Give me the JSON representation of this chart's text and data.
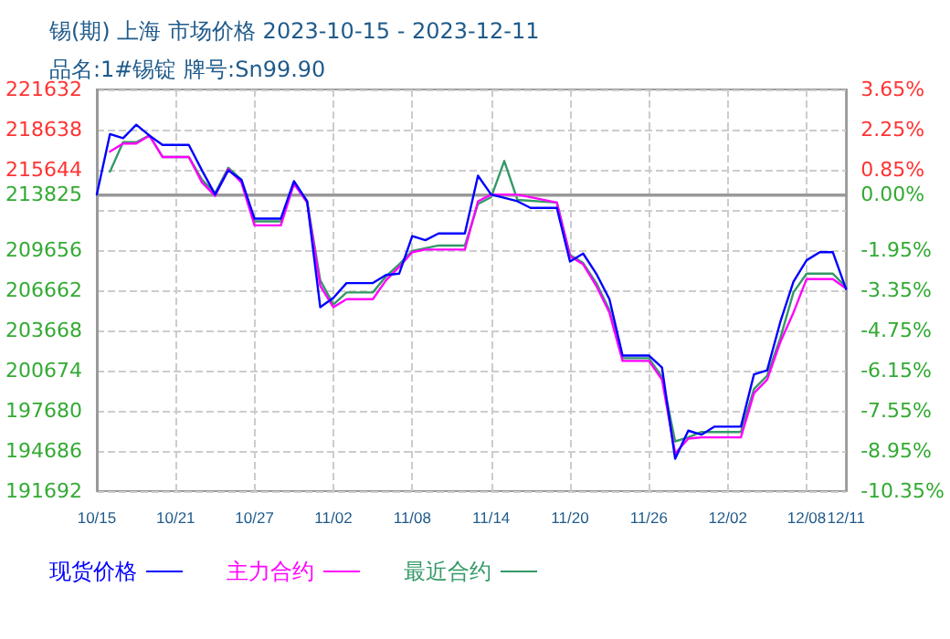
{
  "chart_data": {
    "type": "line",
    "title": "锡(期) 上海 市场价格 2023-10-15 - 2023-12-11",
    "subtitle": "品名:1#锡锭 牌号:Sn99.90",
    "xlim": [
      "2023-10-15",
      "2023-12-11"
    ],
    "xticks": [
      {
        "value": "2023-10-15",
        "label": "10/15"
      },
      {
        "value": "2023-10-21",
        "label": "10/21"
      },
      {
        "value": "2023-10-27",
        "label": "10/27"
      },
      {
        "value": "2023-11-02",
        "label": "11/02"
      },
      {
        "value": "2023-11-08",
        "label": "11/08"
      },
      {
        "value": "2023-11-14",
        "label": "11/14"
      },
      {
        "value": "2023-11-20",
        "label": "11/20"
      },
      {
        "value": "2023-11-26",
        "label": "11/26"
      },
      {
        "value": "2023-12-02",
        "label": "12/02"
      },
      {
        "value": "2023-12-08",
        "label": "12/08"
      },
      {
        "value": "2023-12-11",
        "label": "12/11"
      }
    ],
    "ylim": [
      191692,
      221632
    ],
    "yticks": [
      191692,
      194686,
      197680,
      200674,
      203668,
      206662,
      209656,
      {
        "value": 212650,
        "label": null
      },
      213825,
      215644,
      218638,
      221632
    ],
    "y2lim": [
      -10.35,
      3.65
    ],
    "y2ticks": [
      {
        "value": -10.35,
        "label": "-10.35%"
      },
      {
        "value": -8.95,
        "label": "-8.95%"
      },
      {
        "value": -7.55,
        "label": "-7.55%"
      },
      {
        "value": -6.15,
        "label": "-6.15%"
      },
      {
        "value": -4.75,
        "label": "-4.75%"
      },
      {
        "value": -3.35,
        "label": "-3.35%"
      },
      {
        "value": -1.95,
        "label": "-1.95%"
      },
      {
        "value": -0.55,
        "label": null
      },
      {
        "value": 0,
        "label": "0.00%"
      },
      {
        "value": 0.85,
        "label": "0.85%"
      },
      {
        "value": 2.25,
        "label": "2.25%"
      },
      {
        "value": 3.65,
        "label": "3.65%"
      }
    ],
    "ref_lines": [
      {
        "axis": "y",
        "value": 213825,
        "color": "#999999",
        "line_style": "solid"
      }
    ],
    "grid": true,
    "legend": "bottom left",
    "marker": "none",
    "line_style": "solid",
    "series": [
      {
        "name": "现货价格",
        "color": "#0000ff",
        "x": [
          "2023-10-15",
          "2023-10-16",
          "2023-10-17",
          "2023-10-18",
          "2023-10-19",
          "2023-10-20",
          "2023-10-22",
          "2023-10-23",
          "2023-10-24",
          "2023-10-25",
          "2023-10-26",
          "2023-10-27",
          "2023-10-29",
          "2023-10-30",
          "2023-10-31",
          "2023-11-01",
          "2023-11-02",
          "2023-11-03",
          "2023-11-05",
          "2023-11-06",
          "2023-11-07",
          "2023-11-08",
          "2023-11-09",
          "2023-11-10",
          "2023-11-12",
          "2023-11-13",
          "2023-11-14",
          "2023-11-16",
          "2023-11-17",
          "2023-11-19",
          "2023-11-20",
          "2023-11-21",
          "2023-11-22",
          "2023-11-23",
          "2023-11-24",
          "2023-11-26",
          "2023-11-27",
          "2023-11-28",
          "2023-11-29",
          "2023-11-30",
          "2023-12-01",
          "2023-12-03",
          "2023-12-04",
          "2023-12-05",
          "2023-12-06",
          "2023-12-07",
          "2023-12-08",
          "2023-12-09",
          "2023-12-10",
          "2023-12-11"
        ],
        "values": [
          213800,
          218300,
          218000,
          219000,
          218200,
          217500,
          217500,
          215600,
          213800,
          215600,
          214900,
          212000,
          212000,
          214800,
          213300,
          205400,
          206100,
          207200,
          207200,
          207800,
          207900,
          210700,
          210400,
          210900,
          210900,
          215200,
          213800,
          213300,
          212800,
          212800,
          208800,
          209400,
          207900,
          206000,
          201800,
          201800,
          200900,
          194100,
          196200,
          195900,
          196500,
          196500,
          200400,
          200700,
          204300,
          207300,
          208900,
          209500,
          209500,
          206750
        ]
      },
      {
        "name": "主力合约",
        "color": "#ff00ff",
        "x": [
          "2023-10-16",
          "2023-10-17",
          "2023-10-18",
          "2023-10-19",
          "2023-10-20",
          "2023-10-22",
          "2023-10-23",
          "2023-10-24",
          "2023-10-25",
          "2023-10-26",
          "2023-10-27",
          "2023-10-29",
          "2023-10-30",
          "2023-10-31",
          "2023-11-01",
          "2023-11-02",
          "2023-11-03",
          "2023-11-05",
          "2023-11-06",
          "2023-11-07",
          "2023-11-08",
          "2023-11-09",
          "2023-11-10",
          "2023-11-12",
          "2023-11-13",
          "2023-11-14",
          "2023-11-16",
          "2023-11-19",
          "2023-11-20",
          "2023-11-21",
          "2023-11-22",
          "2023-11-23",
          "2023-11-24",
          "2023-11-26",
          "2023-11-27",
          "2023-11-28",
          "2023-11-29",
          "2023-11-30",
          "2023-12-03",
          "2023-12-04",
          "2023-12-05",
          "2023-12-06",
          "2023-12-07",
          "2023-12-08",
          "2023-12-09",
          "2023-12-10",
          "2023-12-11"
        ],
        "values": [
          217000,
          217600,
          217600,
          218200,
          216600,
          216600,
          214700,
          213700,
          215700,
          214700,
          211500,
          211500,
          214600,
          213200,
          207000,
          205400,
          206000,
          206000,
          207400,
          208400,
          209500,
          209700,
          209700,
          209700,
          213300,
          213800,
          213800,
          213200,
          209200,
          208600,
          207000,
          205000,
          201400,
          201400,
          200000,
          194500,
          195600,
          195700,
          195700,
          199000,
          200000,
          202800,
          205000,
          207500,
          207500,
          207500,
          206800
        ]
      },
      {
        "name": "最近合约",
        "color": "#339966",
        "x": [
          "2023-10-16",
          "2023-10-17",
          "2023-10-18",
          "2023-10-19",
          "2023-10-20",
          "2023-10-22",
          "2023-10-23",
          "2023-10-24",
          "2023-10-25",
          "2023-10-26",
          "2023-10-27",
          "2023-10-29",
          "2023-10-30",
          "2023-10-31",
          "2023-11-01",
          "2023-11-02",
          "2023-11-03",
          "2023-11-05",
          "2023-11-06",
          "2023-11-07",
          "2023-11-08",
          "2023-11-09",
          "2023-11-10",
          "2023-11-12",
          "2023-11-13",
          "2023-11-14",
          "2023-11-15",
          "2023-11-16",
          "2023-11-19",
          "2023-11-20",
          "2023-11-21",
          "2023-11-22",
          "2023-11-23",
          "2023-11-24",
          "2023-11-26",
          "2023-11-27",
          "2023-11-28",
          "2023-11-29",
          "2023-11-30",
          "2023-12-03",
          "2023-12-04",
          "2023-12-05",
          "2023-12-06",
          "2023-12-07",
          "2023-12-08",
          "2023-12-09",
          "2023-12-10",
          "2023-12-11"
        ],
        "values": [
          215500,
          217700,
          217700,
          218200,
          216600,
          216600,
          214900,
          213900,
          215800,
          214900,
          211800,
          211800,
          214700,
          213300,
          207400,
          205600,
          206500,
          206500,
          207700,
          208600,
          209600,
          209800,
          210000,
          210000,
          213100,
          213600,
          216300,
          213400,
          213200,
          209300,
          208700,
          207200,
          205200,
          201600,
          201600,
          200200,
          195400,
          195700,
          196100,
          196100,
          199300,
          200300,
          203100,
          206500,
          207900,
          207900,
          207900,
          206900
        ]
      }
    ]
  }
}
